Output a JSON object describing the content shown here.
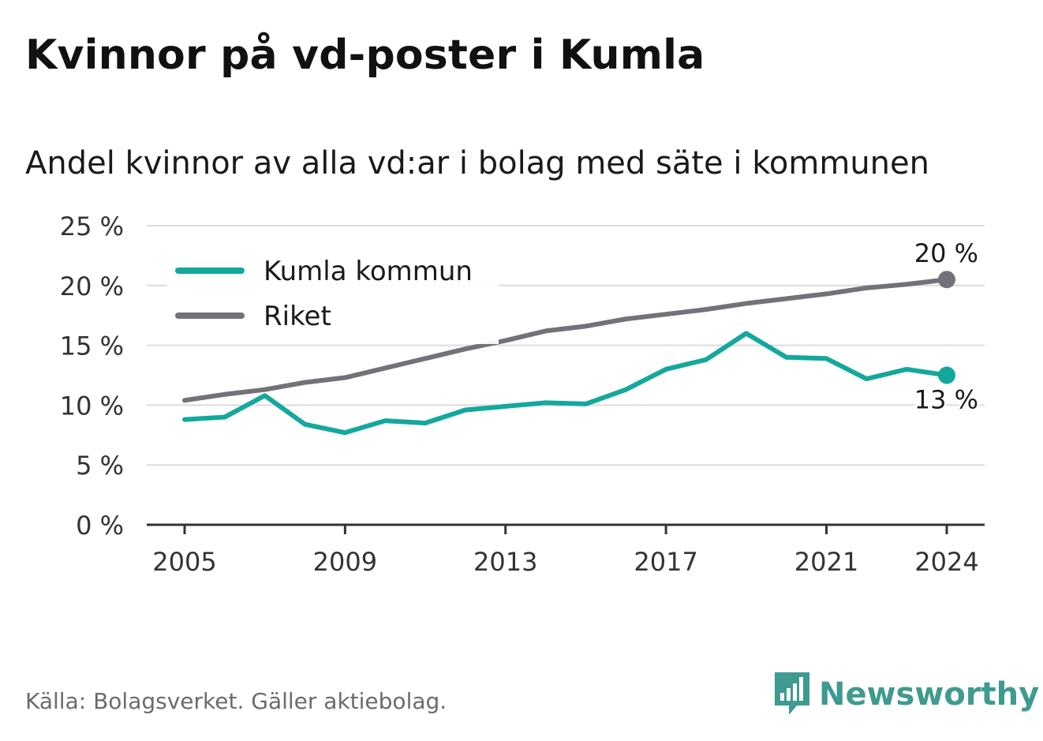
{
  "title": "Kvinnor på vd-poster i Kumla",
  "subtitle": "Andel kvinnor av alla vd:ar i bolag med säte i kommunen",
  "source": "Källa: Bolagsverket. Gäller aktiebolag.",
  "brand": {
    "name": "Newsworthy",
    "icon": "newsworthy-logo-icon",
    "color": "#3f9a8f"
  },
  "chart_data": {
    "type": "line",
    "x": [
      2005,
      2006,
      2007,
      2008,
      2009,
      2010,
      2011,
      2012,
      2013,
      2014,
      2015,
      2016,
      2017,
      2018,
      2019,
      2020,
      2021,
      2022,
      2023,
      2024
    ],
    "series": [
      {
        "name": "Kumla kommun",
        "color": "#14a89d",
        "values": [
          8.8,
          9.0,
          10.8,
          8.4,
          7.7,
          8.7,
          8.5,
          9.6,
          9.9,
          10.2,
          10.1,
          11.3,
          13.0,
          13.8,
          16.0,
          14.0,
          13.9,
          12.2,
          13.0,
          12.5
        ]
      },
      {
        "name": "Riket",
        "color": "#737278",
        "values": [
          10.4,
          10.9,
          11.3,
          11.9,
          12.3,
          13.1,
          13.9,
          14.7,
          15.4,
          16.2,
          16.6,
          17.2,
          17.6,
          18.0,
          18.5,
          18.9,
          19.3,
          19.8,
          20.1,
          20.5
        ]
      }
    ],
    "end_labels": [
      "13 %",
      "20 %"
    ],
    "x_ticks": [
      "2005",
      "2009",
      "2013",
      "2017",
      "2021",
      "2024"
    ],
    "y_ticks": [
      "0 %",
      "5 %",
      "10 %",
      "15 %",
      "20 %",
      "25 %"
    ],
    "y_tick_values": [
      0,
      5,
      10,
      15,
      20,
      25
    ],
    "ylim": [
      0,
      25
    ],
    "xlim": [
      2005,
      2024
    ],
    "grid": true,
    "legend_position": "top-left",
    "xlabel": "",
    "ylabel": ""
  }
}
